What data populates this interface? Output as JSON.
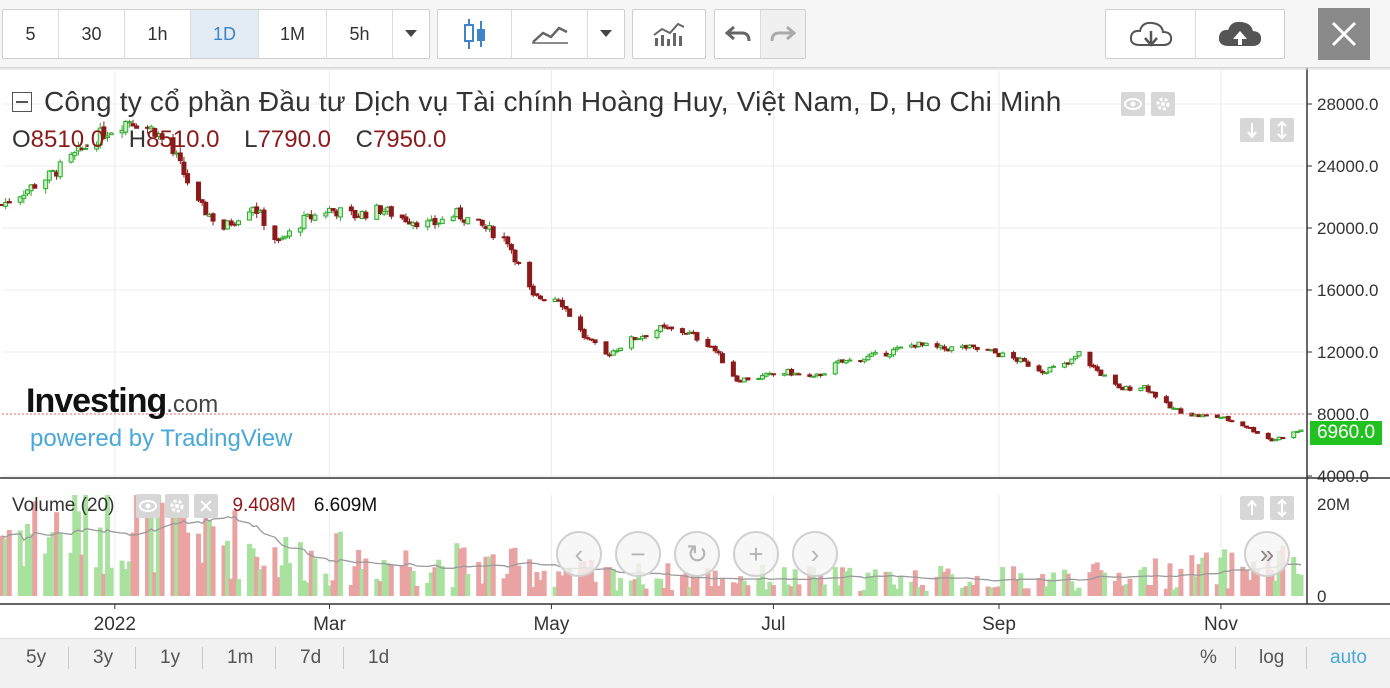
{
  "toolbar": {
    "intervals": [
      "5",
      "30",
      "1h",
      "1D",
      "1M",
      "5h"
    ],
    "active_interval": "1D"
  },
  "header": {
    "title": "Công ty cổ phần Đầu tư Dịch vụ Tài chính Hoàng Huy, Việt Nam, D, Ho Chi Minh",
    "open_label": "O",
    "open": "8510.0",
    "high_label": "H",
    "high": "8510.0",
    "low_label": "L",
    "low": "7790.0",
    "close_label": "C",
    "close": "7950.0"
  },
  "watermark": {
    "brand": "Investing",
    "brand_suffix": ".com",
    "powered": "powered by TradingView"
  },
  "volume_legend": {
    "label": "Volume (20)",
    "value1": "9.408M",
    "value2": "6.609M"
  },
  "last_price_label": "6960.0",
  "range_bar": {
    "left": [
      "5y",
      "3y",
      "1y",
      "1m",
      "7d",
      "1d"
    ],
    "right": [
      "%",
      "log",
      "auto"
    ]
  },
  "colors": {
    "up": "#2ea82e",
    "up_fill": "#c7f0c0",
    "down": "#8b1a1a",
    "vol_up": "#a9e19f",
    "vol_down": "#eaa3a3",
    "last_price": "#21c21f",
    "accent": "#3d85c6"
  },
  "chart_data": [
    {
      "type": "candlestick",
      "title": "Công ty cổ phần Đầu tư Dịch vụ Tài chính Hoàng Huy, Việt Nam, D, Ho Chi Minh",
      "y_ticks": [
        4000,
        8000,
        12000,
        16000,
        20000,
        24000,
        28000
      ],
      "y_tick_labels": [
        "4000.0",
        "8000.0",
        "12000.0",
        "16000.0",
        "20000.0",
        "24000.0",
        "28000.0"
      ],
      "ylim": [
        4000,
        30000
      ],
      "x_tick_labels": [
        "2022",
        "Mar",
        "May",
        "Jul",
        "Sep",
        "Nov"
      ],
      "x_tick_dates": [
        "2022-01-01",
        "2022-03-01",
        "2022-05-01",
        "2022-07-01",
        "2022-09-01",
        "2022-11-01"
      ],
      "x_range": [
        "2021-12-01",
        "2022-11-23"
      ],
      "last_price": 6960,
      "close_anchors": [
        [
          "2021-12-01",
          21500
        ],
        [
          "2021-12-15",
          23500
        ],
        [
          "2021-12-28",
          26000
        ],
        [
          "2022-01-05",
          27000
        ],
        [
          "2022-01-12",
          26300
        ],
        [
          "2022-01-18",
          24500
        ],
        [
          "2022-01-24",
          21500
        ],
        [
          "2022-01-31",
          20000
        ],
        [
          "2022-02-08",
          21500
        ],
        [
          "2022-02-15",
          19000
        ],
        [
          "2022-02-22",
          20500
        ],
        [
          "2022-03-01",
          21200
        ],
        [
          "2022-03-08",
          20800
        ],
        [
          "2022-03-15",
          21200
        ],
        [
          "2022-03-22",
          20600
        ],
        [
          "2022-03-29",
          20200
        ],
        [
          "2022-04-05",
          20900
        ],
        [
          "2022-04-12",
          20100
        ],
        [
          "2022-04-19",
          19200
        ],
        [
          "2022-04-26",
          15500
        ],
        [
          "2022-05-03",
          15500
        ],
        [
          "2022-05-10",
          13000
        ],
        [
          "2022-05-16",
          11800
        ],
        [
          "2022-05-23",
          12800
        ],
        [
          "2022-05-31",
          13500
        ],
        [
          "2022-06-07",
          13300
        ],
        [
          "2022-06-14",
          12400
        ],
        [
          "2022-06-21",
          10200
        ],
        [
          "2022-06-28",
          10400
        ],
        [
          "2022-07-05",
          10700
        ],
        [
          "2022-07-12",
          10300
        ],
        [
          "2022-07-19",
          11300
        ],
        [
          "2022-07-26",
          11600
        ],
        [
          "2022-08-02",
          12000
        ],
        [
          "2022-08-09",
          12500
        ],
        [
          "2022-08-16",
          12200
        ],
        [
          "2022-08-23",
          12300
        ],
        [
          "2022-08-30",
          12000
        ],
        [
          "2022-09-06",
          11500
        ],
        [
          "2022-09-13",
          10800
        ],
        [
          "2022-09-20",
          11200
        ],
        [
          "2022-09-23",
          11900
        ],
        [
          "2022-09-27",
          11000
        ],
        [
          "2022-10-04",
          9600
        ],
        [
          "2022-10-11",
          9800
        ],
        [
          "2022-10-18",
          8400
        ],
        [
          "2022-10-25",
          7900
        ],
        [
          "2022-11-01",
          7800
        ],
        [
          "2022-11-08",
          7200
        ],
        [
          "2022-11-15",
          6300
        ],
        [
          "2022-11-23",
          6960
        ]
      ],
      "volume": {
        "name": "Volume (20)",
        "y_ticks": [
          0,
          20000000
        ],
        "y_tick_labels": [
          "0",
          "20M"
        ],
        "ylim": [
          0,
          22000000
        ],
        "level_anchors": [
          [
            "2021-12-01",
            13000000
          ],
          [
            "2022-01-15",
            15000000
          ],
          [
            "2022-02-15",
            8000000
          ],
          [
            "2022-03-15",
            7000000
          ],
          [
            "2022-04-15",
            6000000
          ],
          [
            "2022-05-15",
            4000000
          ],
          [
            "2022-07-15",
            3500000
          ],
          [
            "2022-09-15",
            3500000
          ],
          [
            "2022-10-15",
            4500000
          ],
          [
            "2022-11-23",
            6500000
          ]
        ]
      }
    }
  ]
}
